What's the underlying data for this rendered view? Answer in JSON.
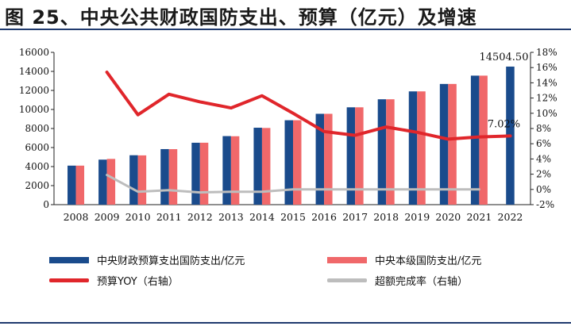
{
  "title": "图 25、中央公共财政国防支出、预算（亿元）及增速",
  "colors": {
    "budget_bar": "#1a4b8c",
    "actual_bar": "#f0686a",
    "yoy_line": "#e0262b",
    "completion_line": "#bdbdbd",
    "rule": "#1f3a6e"
  },
  "chart_data": {
    "type": "bar",
    "categories": [
      "2008",
      "2009",
      "2010",
      "2011",
      "2012",
      "2013",
      "2014",
      "2015",
      "2016",
      "2017",
      "2018",
      "2019",
      "2020",
      "2021",
      "2022"
    ],
    "y_left": {
      "ylim": [
        0,
        16000
      ],
      "ticks": [
        "0",
        "2000",
        "4000",
        "6000",
        "8000",
        "10000",
        "12000",
        "14000",
        "16000"
      ]
    },
    "y_right": {
      "ylim": [
        -2,
        18
      ],
      "ticks": [
        "-2%",
        "0%",
        "2%",
        "4%",
        "6%",
        "8%",
        "10%",
        "12%",
        "14%",
        "16%",
        "18%"
      ]
    },
    "series": [
      {
        "name": "中央财政预算支出国防支出/亿元",
        "kind": "bar",
        "axis": "left",
        "values": [
          4099,
          4729,
          5191,
          5836,
          6503,
          7202,
          8082,
          8868,
          9544,
          10226,
          11070,
          11899,
          12680,
          13553,
          14504.5
        ]
      },
      {
        "name": "中央本级国防支出/亿元",
        "kind": "bar",
        "axis": "left",
        "values": [
          4099,
          4806,
          5176,
          5830,
          6506,
          7187,
          8055,
          8868,
          9544,
          10226,
          11070,
          11899,
          12680,
          13553,
          null
        ]
      },
      {
        "name": "预算YOY（右轴）",
        "kind": "line",
        "axis": "right",
        "values": [
          null,
          15.4,
          9.8,
          12.5,
          11.5,
          10.7,
          12.3,
          10.0,
          7.6,
          7.1,
          8.2,
          7.5,
          6.6,
          6.9,
          7.02
        ]
      },
      {
        "name": "超额完成率（右轴）",
        "kind": "line",
        "axis": "right",
        "values": [
          null,
          1.9,
          -0.3,
          -0.1,
          -0.4,
          -0.3,
          -0.3,
          0.0,
          0.0,
          0.0,
          0.0,
          0.0,
          0.0,
          0.0,
          null
        ]
      }
    ],
    "data_labels": [
      {
        "series": 0,
        "index": 14,
        "text": "14504.50"
      },
      {
        "series": 2,
        "index": 14,
        "text": "7.02%"
      }
    ]
  }
}
